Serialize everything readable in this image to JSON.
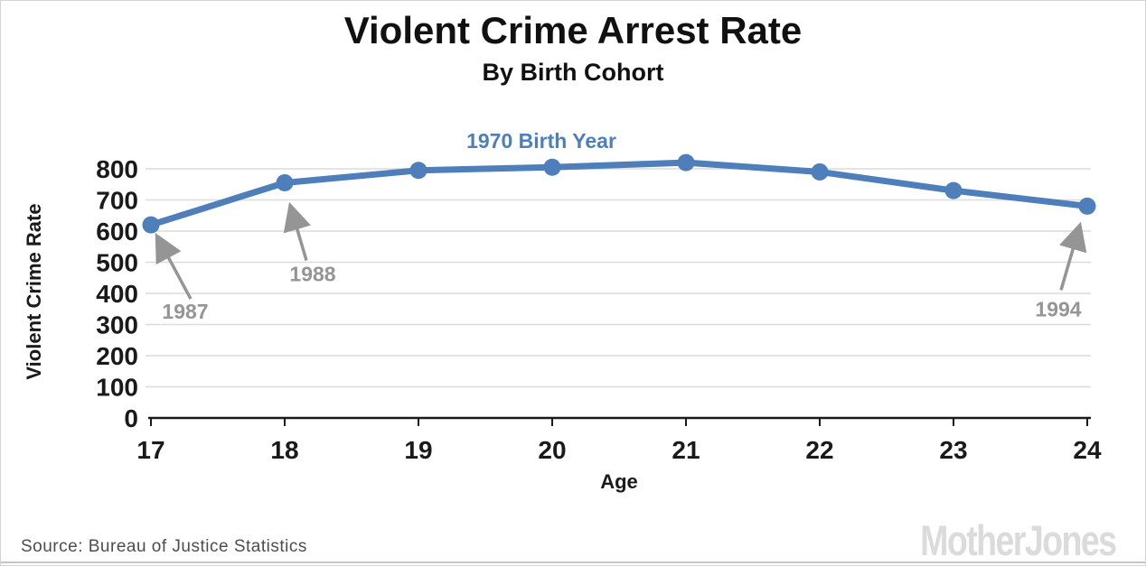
{
  "page": {
    "title": "Violent Crime Arrest Rate",
    "subtitle": "By Birth Cohort",
    "source_text": "Source: Bureau of Justice Statistics",
    "logo_text": "MotherJones"
  },
  "chart_data": {
    "type": "line",
    "title": "Violent Crime Arrest Rate",
    "subtitle": "By Birth Cohort",
    "xlabel": "Age",
    "ylabel": "Violent Crime Rate",
    "x": [
      17,
      18,
      19,
      20,
      21,
      22,
      23,
      24
    ],
    "series": [
      {
        "name": "1970 Birth Year",
        "values": [
          620,
          755,
          795,
          805,
          820,
          790,
          730,
          680
        ]
      }
    ],
    "ylim": [
      0,
      850
    ],
    "yticks": [
      0,
      100,
      200,
      300,
      400,
      500,
      600,
      700,
      800
    ],
    "grid": "horizontal",
    "legend": "none",
    "series_label_text": "1970 Birth Year",
    "annotations": [
      {
        "label": "1987",
        "age": 17,
        "text_offset": [
          38,
          104
        ],
        "arrow_from": [
          44,
          82
        ],
        "arrow_to": [
          8,
          15
        ]
      },
      {
        "label": "1988",
        "age": 18,
        "text_offset": [
          31,
          109
        ],
        "arrow_from": [
          24,
          86
        ],
        "arrow_to": [
          7,
          28
        ]
      },
      {
        "label": "1994",
        "age": 24,
        "text_offset": [
          -32,
          122
        ],
        "arrow_from": [
          -29,
          93
        ],
        "arrow_to": [
          -9,
          24
        ]
      }
    ],
    "colors": {
      "line": "#4e7fba",
      "grid": "#dcdcdc",
      "axis": "#1a1a1a",
      "annotation": "#959595"
    }
  }
}
